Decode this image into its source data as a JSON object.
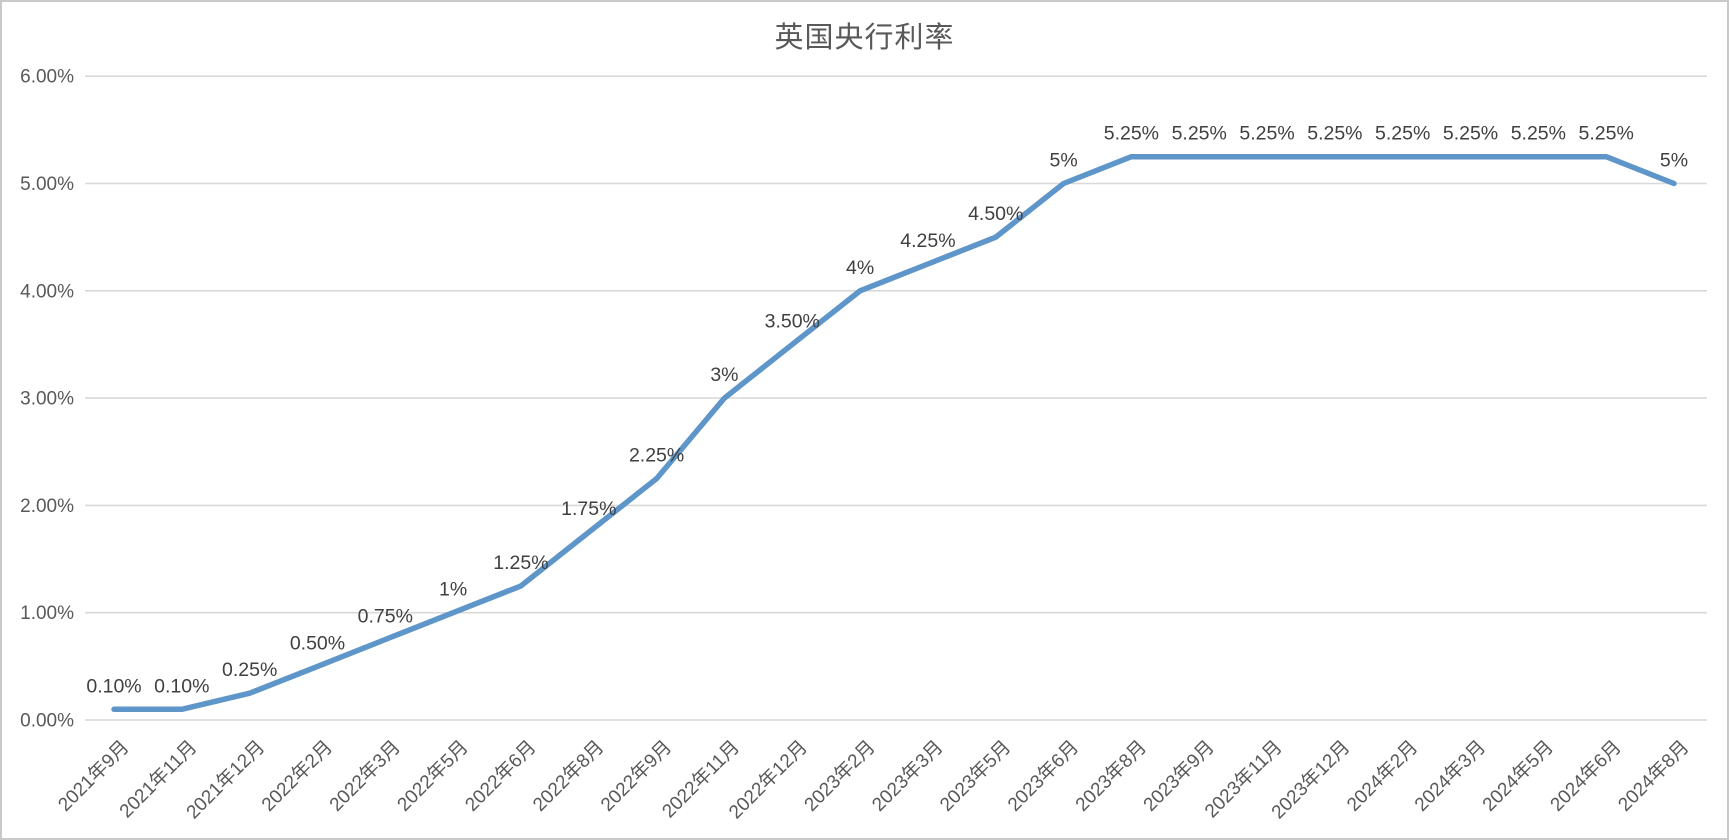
{
  "chart_data": {
    "type": "line",
    "title": "英国央行利率",
    "categories": [
      "2021年9月",
      "2021年11月",
      "2021年12月",
      "2022年2月",
      "2022年3月",
      "2022年5月",
      "2022年6月",
      "2022年8月",
      "2022年9月",
      "2022年11月",
      "2022年12月",
      "2023年2月",
      "2023年3月",
      "2023年5月",
      "2023年6月",
      "2023年8月",
      "2023年9月",
      "2023年11月",
      "2023年12月",
      "2024年2月",
      "2024年3月",
      "2024年5月",
      "2024年6月",
      "2024年8月"
    ],
    "values": [
      0.1,
      0.1,
      0.25,
      0.5,
      0.75,
      1,
      1.25,
      1.75,
      2.25,
      3,
      3.5,
      4,
      4.25,
      4.5,
      5,
      5.25,
      5.25,
      5.25,
      5.25,
      5.25,
      5.25,
      5.25,
      5.25,
      5
    ],
    "data_labels": [
      "0.10%",
      "0.10%",
      "0.25%",
      "0.50%",
      "0.75%",
      "1%",
      "1.25%",
      "1.75%",
      "2.25%",
      "3%",
      "3.50%",
      "4%",
      "4.25%",
      "4.50%",
      "5%",
      "5.25%",
      "5.25%",
      "5.25%",
      "5.25%",
      "5.25%",
      "5.25%",
      "5.25%",
      "5.25%",
      "5%"
    ],
    "xlabel": "",
    "ylabel": "",
    "y_tick_labels": [
      "0.00%",
      "1.00%",
      "2.00%",
      "3.00%",
      "4.00%",
      "5.00%",
      "6.00%"
    ],
    "y_tick_values": [
      0,
      1,
      2,
      3,
      4,
      5,
      6
    ],
    "ylim": [
      0,
      6
    ],
    "grid": true,
    "legend_position": "none",
    "colors": {
      "line": "#5E96CA",
      "grid_line": "#d9d9d9",
      "axis_text": "#595959",
      "data_label_text": "#404040",
      "title_text": "#595959",
      "frame_border": "#c9c9c9",
      "background": "#ffffff"
    }
  }
}
